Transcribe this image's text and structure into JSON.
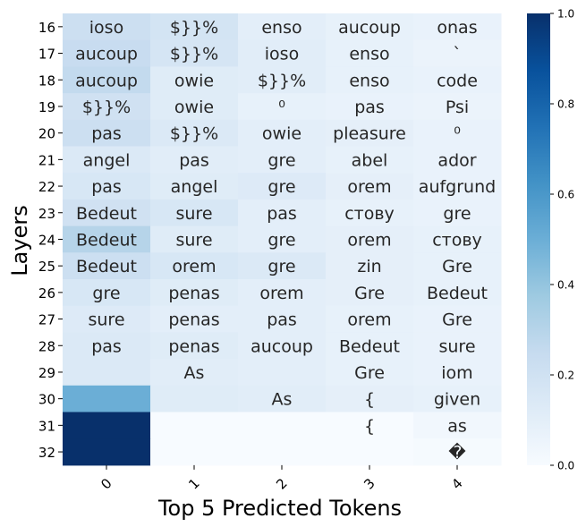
{
  "chart_data": {
    "type": "heatmap",
    "title": "",
    "xlabel": "Top 5 Predicted Tokens",
    "ylabel": "Layers",
    "x_categories": [
      "0",
      "1",
      "2",
      "3",
      "4"
    ],
    "y_categories": [
      "16",
      "17",
      "18",
      "19",
      "20",
      "21",
      "22",
      "23",
      "24",
      "25",
      "26",
      "27",
      "28",
      "29",
      "30",
      "31",
      "32"
    ],
    "tokens": [
      [
        "ioso",
        "$}}%",
        "enso",
        "aucoup",
        "onas"
      ],
      [
        "aucoup",
        "$}}%",
        "ioso",
        "enso",
        "`"
      ],
      [
        "aucoup",
        "owie",
        "$}}%",
        "enso",
        "code"
      ],
      [
        "$}}%",
        "owie",
        "⁰",
        "pas",
        "Psi"
      ],
      [
        "pas",
        "$}}%",
        "owie",
        "pleasure",
        "⁰"
      ],
      [
        "angel",
        "pas",
        "gre",
        "abel",
        "ador"
      ],
      [
        "pas",
        "angel",
        "gre",
        "orem",
        "aufgrund"
      ],
      [
        "Bedeut",
        "sure",
        "pas",
        "стову",
        "gre"
      ],
      [
        "Bedeut",
        "sure",
        "gre",
        "orem",
        "стову"
      ],
      [
        "Bedeut",
        "orem",
        "gre",
        "zin",
        "Gre"
      ],
      [
        "gre",
        "penas",
        "orem",
        "Gre",
        "Bedeut"
      ],
      [
        "sure",
        "penas",
        "pas",
        "orem",
        "Gre"
      ],
      [
        "pas",
        "penas",
        "aucoup",
        "Bedeut",
        "sure"
      ],
      [
        "",
        "As",
        "",
        "Gre",
        "iom"
      ],
      [
        "",
        "",
        "As",
        "{",
        "given"
      ],
      [
        "",
        "",
        "",
        "{",
        "as"
      ],
      [
        "",
        "",
        "",
        "",
        "�"
      ]
    ],
    "values": [
      [
        0.22,
        0.18,
        0.1,
        0.08,
        0.07
      ],
      [
        0.24,
        0.17,
        0.11,
        0.08,
        0.06
      ],
      [
        0.26,
        0.12,
        0.11,
        0.08,
        0.07
      ],
      [
        0.2,
        0.12,
        0.08,
        0.07,
        0.06
      ],
      [
        0.22,
        0.14,
        0.1,
        0.09,
        0.07
      ],
      [
        0.14,
        0.11,
        0.1,
        0.08,
        0.07
      ],
      [
        0.16,
        0.12,
        0.13,
        0.09,
        0.07
      ],
      [
        0.2,
        0.16,
        0.1,
        0.08,
        0.07
      ],
      [
        0.3,
        0.12,
        0.1,
        0.09,
        0.08
      ],
      [
        0.22,
        0.16,
        0.14,
        0.09,
        0.08
      ],
      [
        0.16,
        0.12,
        0.1,
        0.09,
        0.08
      ],
      [
        0.13,
        0.1,
        0.1,
        0.08,
        0.07
      ],
      [
        0.14,
        0.12,
        0.1,
        0.08,
        0.07
      ],
      [
        0.14,
        0.11,
        0.1,
        0.08,
        0.07
      ],
      [
        0.5,
        0.12,
        0.11,
        0.09,
        0.08
      ],
      [
        1.0,
        0.0,
        0.0,
        0.0,
        0.03
      ],
      [
        1.0,
        0.0,
        0.0,
        0.0,
        0.01
      ]
    ],
    "colorbar": {
      "colormap": "Blues",
      "vmin": 0.0,
      "vmax": 1.0,
      "ticks": [
        "0.0",
        "0.2",
        "0.4",
        "0.6",
        "0.8",
        "1.0"
      ]
    },
    "grid": false
  }
}
